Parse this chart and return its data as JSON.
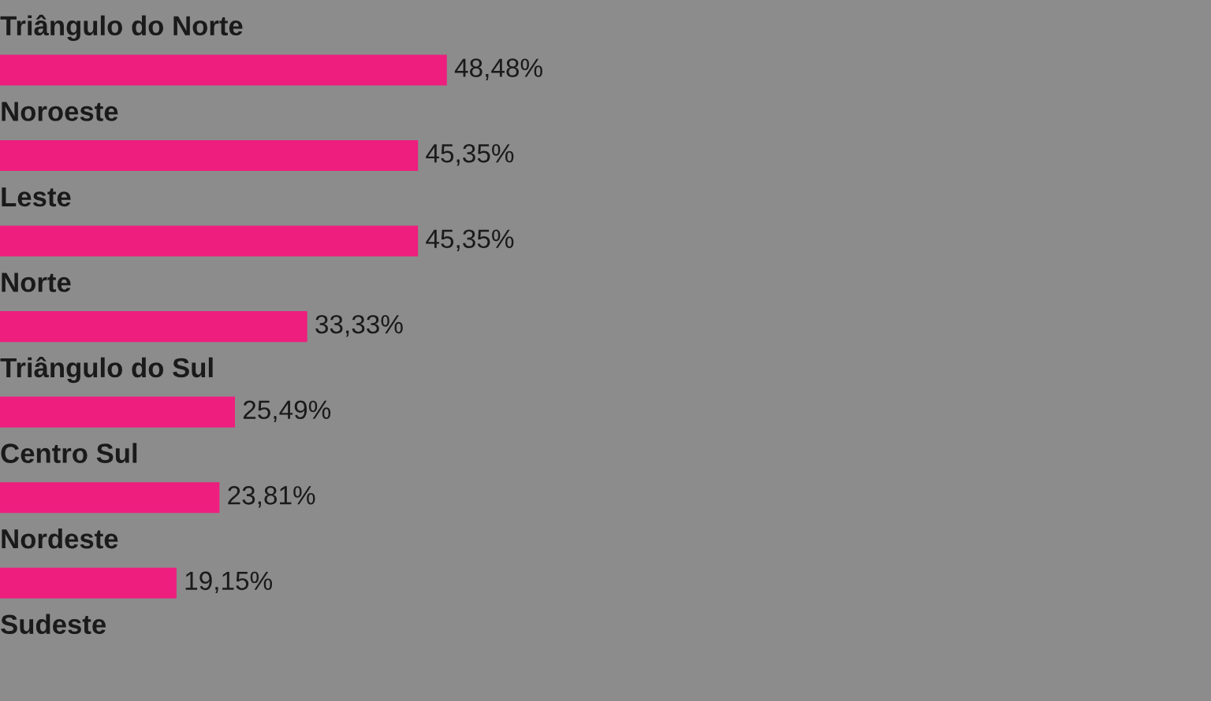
{
  "chart_data": {
    "type": "bar",
    "orientation": "horizontal",
    "categories": [
      "Triângulo do Norte",
      "Noroeste",
      "Leste",
      "Norte",
      "Triângulo do Sul",
      "Centro Sul",
      "Nordeste",
      "Sudeste"
    ],
    "values": [
      48.48,
      45.35,
      45.35,
      33.33,
      25.49,
      23.81,
      19.15,
      null
    ],
    "value_labels": [
      "48,48%",
      "45,35%",
      "45,35%",
      "33,33%",
      "25,49%",
      "23,81%",
      "19,15%",
      null
    ],
    "color": "#ee1e7e"
  }
}
